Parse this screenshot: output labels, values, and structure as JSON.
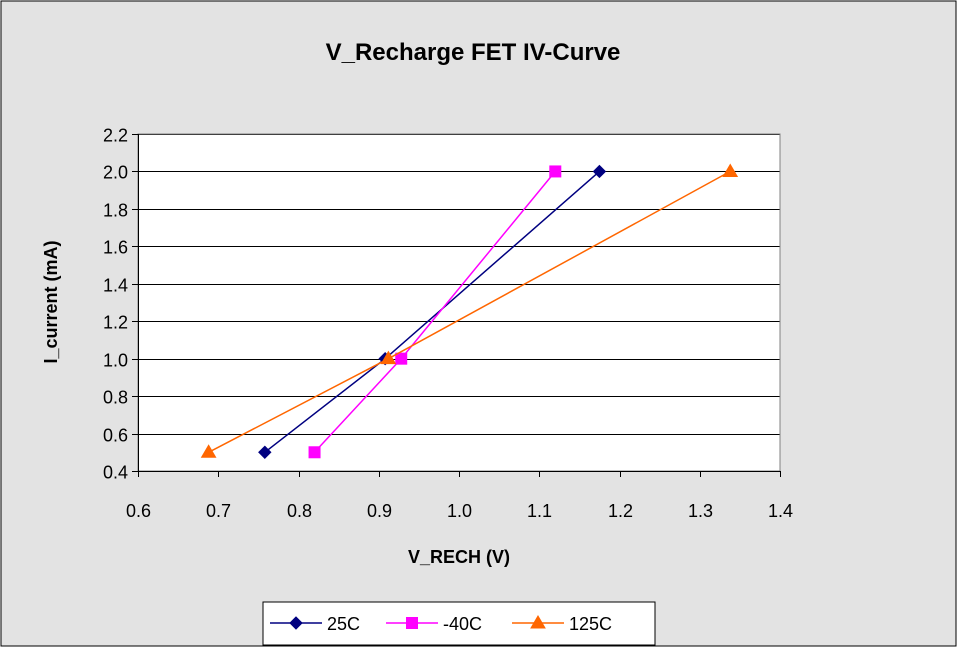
{
  "chart_data": {
    "type": "line",
    "title": "V_Recharge FET IV-Curve",
    "xlabel": "V_RECH (V)",
    "ylabel": "I_current (mA)",
    "xlim": [
      0.6,
      1.4
    ],
    "ylim": [
      0.4,
      2.2
    ],
    "x_ticks": [
      "0.6",
      "0.7",
      "0.8",
      "0.9",
      "1.0",
      "1.1",
      "1.2",
      "1.3",
      "1.4"
    ],
    "y_ticks": [
      "0.4",
      "0.6",
      "0.8",
      "1.0",
      "1.2",
      "1.4",
      "1.6",
      "1.8",
      "2.0",
      "2.2"
    ],
    "grid": "horizontal",
    "legend_position": "bottom",
    "series": [
      {
        "name": "25C",
        "color": "#000080",
        "marker": "diamond",
        "points": [
          {
            "x": 0.758,
            "y": 0.5
          },
          {
            "x": 0.908,
            "y": 1.0
          },
          {
            "x": 1.175,
            "y": 2.0
          }
        ]
      },
      {
        "name": "-40C",
        "color": "#FF00FF",
        "marker": "square",
        "points": [
          {
            "x": 0.82,
            "y": 0.5
          },
          {
            "x": 0.928,
            "y": 1.0
          },
          {
            "x": 1.12,
            "y": 2.0
          }
        ]
      },
      {
        "name": "125C",
        "color": "#FF6600",
        "marker": "triangle",
        "points": [
          {
            "x": 0.688,
            "y": 0.5
          },
          {
            "x": 0.912,
            "y": 1.0
          },
          {
            "x": 1.338,
            "y": 2.0
          }
        ]
      }
    ]
  },
  "colors": {
    "chart_area_background": "#E3E3E3",
    "plot_area_background": "#FFFFFF",
    "gridline": "#000000",
    "border": "#000000"
  }
}
